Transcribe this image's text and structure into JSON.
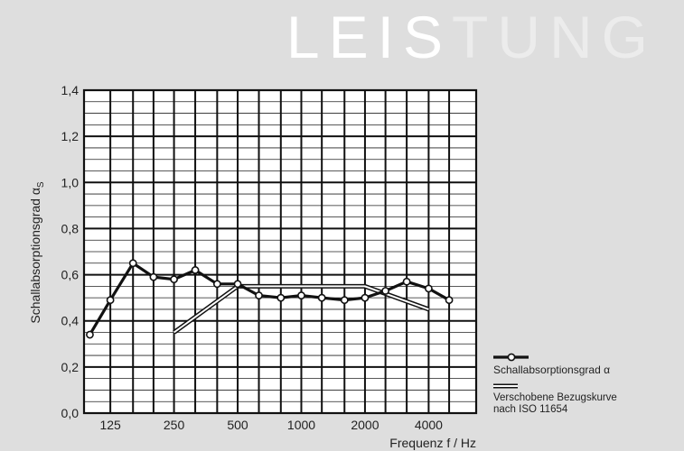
{
  "header": {
    "title_part1": "LEIS",
    "title_part2": "TUNG"
  },
  "chart_data": {
    "type": "line",
    "x_tick_labels": [
      "125",
      "250",
      "500",
      "1000",
      "2000",
      "4000"
    ],
    "xlabel": "Frequenz f / Hz",
    "ylabel": "Schallabsorptionsgrad α",
    "ylabel_subscript": "S",
    "ylim": [
      0,
      1.4
    ],
    "y_tick_labels": [
      "0,0",
      "0,2",
      "0,4",
      "0,6",
      "0,8",
      "1,0",
      "1,2",
      "1,4"
    ],
    "grid": true,
    "series": [
      {
        "name": "Schallabsorptionsgrad α",
        "style": "bold-line-with-circles",
        "x": [
          100,
          125,
          160,
          200,
          250,
          315,
          400,
          500,
          630,
          800,
          1000,
          1250,
          1600,
          2000,
          2500,
          3150,
          4000,
          5000
        ],
        "values": [
          0.34,
          0.49,
          0.65,
          0.59,
          0.58,
          0.62,
          0.56,
          0.56,
          0.51,
          0.5,
          0.51,
          0.5,
          0.49,
          0.5,
          0.53,
          0.57,
          0.54,
          0.49
        ]
      },
      {
        "name": "Verschobene Bezugskurve nach ISO 11654",
        "style": "double-line",
        "x": [
          250,
          500,
          2000,
          4000
        ],
        "values": [
          0.35,
          0.55,
          0.55,
          0.45
        ]
      }
    ],
    "legend_position": "bottom-right"
  }
}
